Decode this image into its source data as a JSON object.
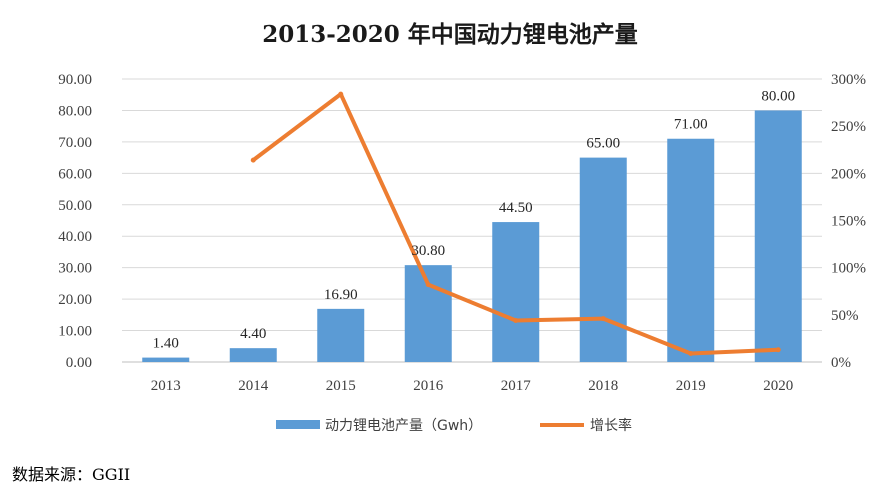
{
  "chart_data": {
    "type": "bar",
    "title": "2013-2020 年中国动力锂电池产量",
    "categories": [
      "2013",
      "2014",
      "2015",
      "2016",
      "2017",
      "2018",
      "2019",
      "2020"
    ],
    "series": [
      {
        "name": "动力锂电池产量（Gwh）",
        "type": "bar",
        "axis": "left",
        "values": [
          1.4,
          4.4,
          16.9,
          30.8,
          44.5,
          65.0,
          71.0,
          80.0
        ],
        "data_labels": [
          "1.40",
          "4.40",
          "16.90",
          "30.80",
          "44.50",
          "65.00",
          "71.00",
          "80.00"
        ]
      },
      {
        "name": "增长率",
        "type": "line",
        "axis": "right",
        "values": [
          null,
          214,
          284,
          82,
          44,
          46,
          9,
          13
        ]
      }
    ],
    "y_left": {
      "ylim": [
        0,
        90
      ],
      "ticks": [
        "0.00",
        "10.00",
        "20.00",
        "30.00",
        "40.00",
        "50.00",
        "60.00",
        "70.00",
        "80.00",
        "90.00"
      ]
    },
    "y_right": {
      "ylim": [
        0,
        300
      ],
      "unit": "%",
      "ticks": [
        "0%",
        "50%",
        "100%",
        "150%",
        "200%",
        "250%",
        "300%"
      ]
    },
    "grid": true,
    "legend": "bottom",
    "colors": {
      "bar": "#5B9BD5",
      "line": "#ED7D31",
      "grid": "#D9D9D9"
    }
  },
  "source": "数据来源：GGII"
}
